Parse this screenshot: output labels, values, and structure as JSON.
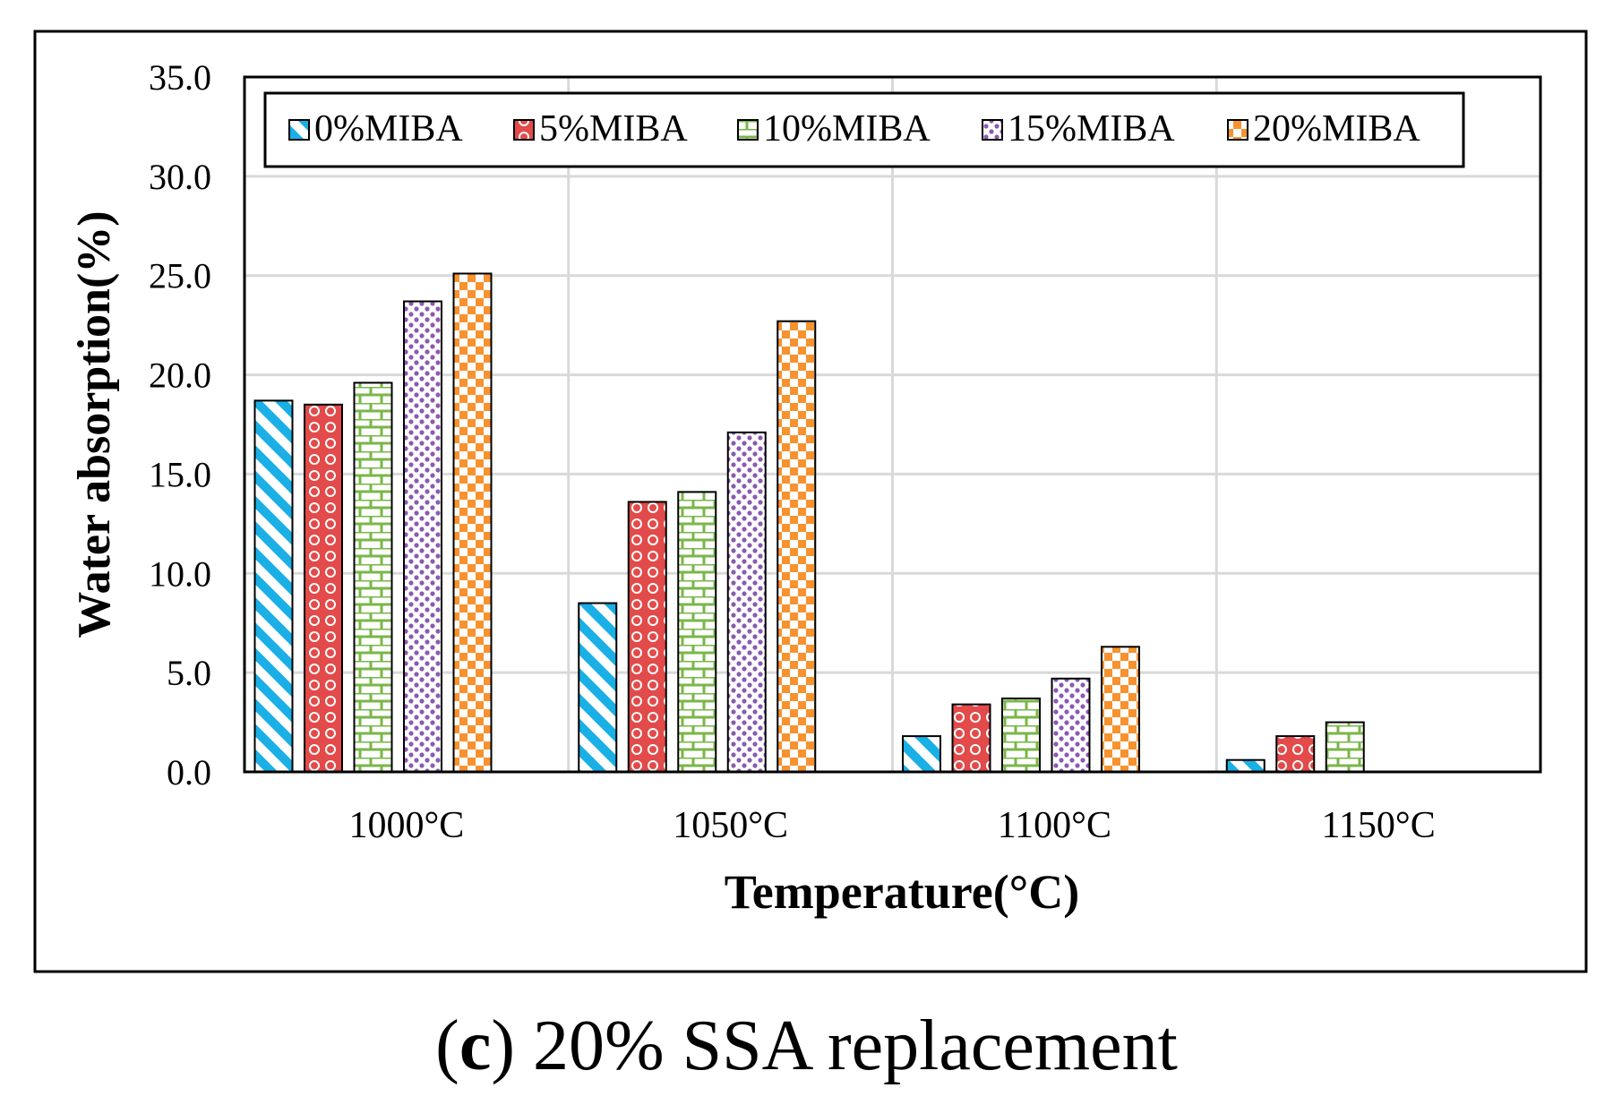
{
  "chart_data": {
    "type": "bar",
    "title": "",
    "xlabel": "Temperature(°C)",
    "ylabel": "Water absorption(%)",
    "ylim": [
      0,
      35
    ],
    "yticks": [
      "0.0",
      "5.0",
      "10.0",
      "15.0",
      "20.0",
      "25.0",
      "30.0",
      "35.0"
    ],
    "categories": [
      "1000°C",
      "1050°C",
      "1100°C",
      "1150°C"
    ],
    "grid": true,
    "legend_position": "top-left",
    "series": [
      {
        "name": "0%MIBA",
        "color": "#1ab0e6",
        "pattern": "diagonal-stripes",
        "values": [
          18.7,
          8.5,
          1.8,
          0.6
        ]
      },
      {
        "name": "5%MIBA",
        "color": "#e34a4a",
        "pattern": "circles",
        "values": [
          18.5,
          13.6,
          3.4,
          1.8
        ]
      },
      {
        "name": "10%MIBA",
        "color": "#7ab648",
        "pattern": "bricks",
        "values": [
          19.6,
          14.1,
          3.7,
          2.5
        ]
      },
      {
        "name": "15%MIBA",
        "color": "#8a5bb0",
        "pattern": "dots",
        "values": [
          23.7,
          17.1,
          4.7,
          0
        ]
      },
      {
        "name": "20%MIBA",
        "color": "#f7922f",
        "pattern": "checkerboard",
        "values": [
          25.1,
          22.7,
          6.3,
          0
        ]
      }
    ]
  },
  "caption": {
    "letter": "c",
    "text": " 20% SSA replacement"
  }
}
